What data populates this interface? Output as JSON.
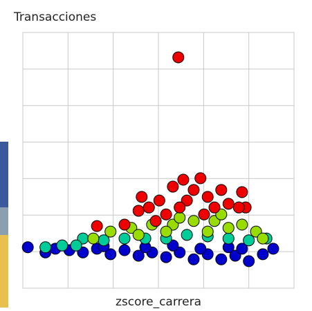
{
  "chart_data": {
    "type": "scatter",
    "title": "Transacciones",
    "x_label": "zscore_carrera",
    "xlim": [
      0,
      6
    ],
    "ylim": [
      0,
      7
    ],
    "xticks": [
      0,
      1,
      2,
      3,
      4,
      5,
      6
    ],
    "yticks": [
      0,
      1,
      2,
      3,
      4,
      5,
      6,
      7
    ],
    "grid": true,
    "series": [
      {
        "color": "#0000cc",
        "x": [
          0.11,
          0.5,
          0.72,
          1.03,
          1.33,
          1.64,
          1.94,
          2.25,
          2.56,
          2.86,
          3.17,
          3.47,
          3.78,
          4.09,
          4.39,
          4.7,
          5.0,
          5.31,
          5.54,
          4.55,
          3.32,
          1.79,
          3.93,
          2.71,
          4.85
        ],
        "values": [
          1.12,
          0.98,
          1.08,
          1.04,
          0.98,
          1.08,
          0.93,
          1.04,
          0.89,
          0.98,
          0.85,
          0.98,
          0.79,
          0.93,
          0.79,
          0.89,
          0.74,
          0.93,
          1.08,
          1.12,
          1.17,
          1.15,
          1.08,
          1.12,
          1.08
        ]
      },
      {
        "color": "#00cc99",
        "x": [
          0.5,
          0.87,
          1.33,
          1.79,
          2.25,
          2.71,
          3.17,
          3.63,
          4.09,
          4.55,
          5.0,
          5.39,
          1.18
        ],
        "values": [
          1.12,
          1.17,
          1.36,
          1.31,
          1.36,
          1.36,
          1.36,
          1.46,
          1.42,
          1.36,
          1.31,
          1.36,
          1.17
        ]
      },
      {
        "color": "#99dd00",
        "x": [
          1.56,
          1.94,
          2.4,
          2.86,
          3.32,
          3.78,
          4.24,
          4.55,
          4.85,
          5.16,
          3.17,
          4.09,
          2.56,
          3.47,
          4.39,
          5.31
        ],
        "values": [
          1.36,
          1.55,
          1.65,
          1.74,
          1.74,
          1.84,
          1.84,
          1.65,
          1.74,
          1.55,
          1.55,
          1.55,
          1.46,
          1.93,
          2.02,
          1.36
        ]
      },
      {
        "color": "#ee0000",
        "x": [
          3.44,
          1.64,
          2.25,
          2.56,
          3.32,
          3.93,
          4.39,
          4.85,
          4.93,
          3.02,
          3.63,
          4.09,
          2.79,
          3.47,
          4.24,
          3.78,
          3.17,
          4.55,
          3.55,
          4.78,
          4.01,
          2.94,
          2.63
        ],
        "values": [
          6.32,
          1.7,
          1.74,
          2.12,
          2.78,
          3.01,
          2.69,
          2.63,
          2.21,
          2.4,
          2.4,
          2.5,
          2.21,
          2.21,
          2.21,
          2.69,
          2.02,
          2.31,
          2.97,
          2.21,
          2.02,
          1.84,
          2.5
        ]
      }
    ]
  }
}
